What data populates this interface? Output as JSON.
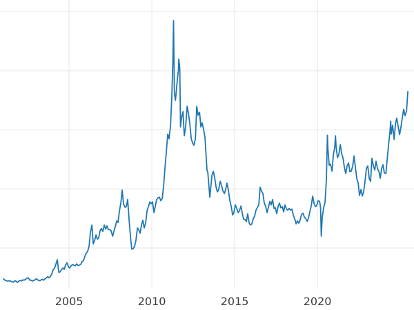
{
  "chart_data": {
    "type": "line",
    "title": "",
    "xlabel": "",
    "ylabel": "",
    "grid": true,
    "legend": "none",
    "xlim": [
      2000.83,
      2025.83
    ],
    "ylim": [
      3,
      52
    ],
    "xticks": [
      {
        "value": 2005,
        "label": "2005"
      },
      {
        "value": 2010,
        "label": "2010"
      },
      {
        "value": 2015,
        "label": "2015"
      },
      {
        "value": 2020,
        "label": "2020"
      }
    ],
    "yticks": [
      10,
      20,
      30,
      40,
      50
    ],
    "colors": {
      "line": "#1f77b4",
      "grid": "#e5e5e5",
      "tick_label": "#3b3b3b",
      "background": "#ffffff"
    },
    "points": [
      [
        2001.04,
        4.75
      ],
      [
        2001.13,
        4.55
      ],
      [
        2001.21,
        4.45
      ],
      [
        2001.29,
        4.4
      ],
      [
        2001.38,
        4.45
      ],
      [
        2001.46,
        4.4
      ],
      [
        2001.54,
        4.3
      ],
      [
        2001.63,
        4.2
      ],
      [
        2001.71,
        4.45
      ],
      [
        2001.79,
        4.4
      ],
      [
        2001.88,
        4.15
      ],
      [
        2001.96,
        4.35
      ],
      [
        2002.04,
        4.5
      ],
      [
        2002.13,
        4.45
      ],
      [
        2002.21,
        4.6
      ],
      [
        2002.29,
        4.55
      ],
      [
        2002.38,
        4.7
      ],
      [
        2002.46,
        4.9
      ],
      [
        2002.54,
        4.95
      ],
      [
        2002.63,
        4.55
      ],
      [
        2002.71,
        4.55
      ],
      [
        2002.79,
        4.4
      ],
      [
        2002.88,
        4.5
      ],
      [
        2002.96,
        4.65
      ],
      [
        2003.04,
        4.8
      ],
      [
        2003.13,
        4.55
      ],
      [
        2003.21,
        4.45
      ],
      [
        2003.29,
        4.55
      ],
      [
        2003.38,
        4.7
      ],
      [
        2003.46,
        4.55
      ],
      [
        2003.54,
        4.75
      ],
      [
        2003.63,
        4.95
      ],
      [
        2003.71,
        5.15
      ],
      [
        2003.79,
        4.95
      ],
      [
        2003.88,
        5.2
      ],
      [
        2003.96,
        5.6
      ],
      [
        2004.04,
        6.3
      ],
      [
        2004.13,
        6.6
      ],
      [
        2004.21,
        7.3
      ],
      [
        2004.29,
        8.0
      ],
      [
        2004.38,
        5.9
      ],
      [
        2004.46,
        5.95
      ],
      [
        2004.54,
        6.3
      ],
      [
        2004.63,
        6.6
      ],
      [
        2004.71,
        6.4
      ],
      [
        2004.79,
        7.1
      ],
      [
        2004.88,
        7.5
      ],
      [
        2004.96,
        6.8
      ],
      [
        2005.04,
        6.6
      ],
      [
        2005.13,
        7.0
      ],
      [
        2005.21,
        7.2
      ],
      [
        2005.29,
        7.1
      ],
      [
        2005.38,
        7.0
      ],
      [
        2005.46,
        7.3
      ],
      [
        2005.54,
        7.05
      ],
      [
        2005.63,
        7.1
      ],
      [
        2005.71,
        7.25
      ],
      [
        2005.79,
        7.7
      ],
      [
        2005.88,
        7.9
      ],
      [
        2005.96,
        8.65
      ],
      [
        2006.04,
        9.1
      ],
      [
        2006.13,
        9.5
      ],
      [
        2006.21,
        10.3
      ],
      [
        2006.29,
        12.6
      ],
      [
        2006.38,
        13.9
      ],
      [
        2006.46,
        10.7
      ],
      [
        2006.54,
        11.2
      ],
      [
        2006.63,
        12.2
      ],
      [
        2006.71,
        11.5
      ],
      [
        2006.79,
        11.7
      ],
      [
        2006.88,
        13.0
      ],
      [
        2006.96,
        13.3
      ],
      [
        2007.04,
        12.8
      ],
      [
        2007.13,
        13.9
      ],
      [
        2007.21,
        13.2
      ],
      [
        2007.29,
        13.75
      ],
      [
        2007.38,
        13.1
      ],
      [
        2007.46,
        13.1
      ],
      [
        2007.54,
        12.9
      ],
      [
        2007.63,
        12.0
      ],
      [
        2007.71,
        12.8
      ],
      [
        2007.79,
        13.6
      ],
      [
        2007.88,
        14.6
      ],
      [
        2007.96,
        14.3
      ],
      [
        2008.04,
        16.2
      ],
      [
        2008.13,
        17.7
      ],
      [
        2008.21,
        19.8
      ],
      [
        2008.29,
        17.5
      ],
      [
        2008.38,
        16.9
      ],
      [
        2008.46,
        17.0
      ],
      [
        2008.54,
        18.2
      ],
      [
        2008.63,
        14.6
      ],
      [
        2008.71,
        11.9
      ],
      [
        2008.79,
        9.8
      ],
      [
        2008.88,
        9.9
      ],
      [
        2008.96,
        10.3
      ],
      [
        2009.04,
        11.3
      ],
      [
        2009.13,
        13.4
      ],
      [
        2009.21,
        13.1
      ],
      [
        2009.29,
        12.5
      ],
      [
        2009.38,
        14.0
      ],
      [
        2009.46,
        14.7
      ],
      [
        2009.54,
        13.4
      ],
      [
        2009.63,
        14.3
      ],
      [
        2009.71,
        16.3
      ],
      [
        2009.79,
        17.0
      ],
      [
        2009.88,
        17.8
      ],
      [
        2009.96,
        17.5
      ],
      [
        2010.04,
        17.8
      ],
      [
        2010.13,
        16.0
      ],
      [
        2010.21,
        17.1
      ],
      [
        2010.29,
        18.2
      ],
      [
        2010.38,
        18.5
      ],
      [
        2010.46,
        18.6
      ],
      [
        2010.54,
        18.0
      ],
      [
        2010.63,
        18.4
      ],
      [
        2010.71,
        20.5
      ],
      [
        2010.79,
        23.4
      ],
      [
        2010.88,
        26.5
      ],
      [
        2010.96,
        29.3
      ],
      [
        2011.04,
        28.5
      ],
      [
        2011.13,
        30.8
      ],
      [
        2011.21,
        35.9
      ],
      [
        2011.27,
        42.0
      ],
      [
        2011.31,
        48.5
      ],
      [
        2011.36,
        36.5
      ],
      [
        2011.42,
        35.0
      ],
      [
        2011.46,
        36.0
      ],
      [
        2011.54,
        38.5
      ],
      [
        2011.6,
        40.0
      ],
      [
        2011.63,
        42.0
      ],
      [
        2011.69,
        40.3
      ],
      [
        2011.73,
        30.5
      ],
      [
        2011.79,
        32.0
      ],
      [
        2011.88,
        33.1
      ],
      [
        2011.96,
        29.0
      ],
      [
        2012.04,
        30.5
      ],
      [
        2012.13,
        34.0
      ],
      [
        2012.21,
        32.8
      ],
      [
        2012.29,
        31.2
      ],
      [
        2012.38,
        28.5
      ],
      [
        2012.46,
        27.8
      ],
      [
        2012.54,
        27.4
      ],
      [
        2012.63,
        28.5
      ],
      [
        2012.71,
        34.0
      ],
      [
        2012.79,
        32.5
      ],
      [
        2012.88,
        33.0
      ],
      [
        2012.96,
        30.5
      ],
      [
        2013.04,
        31.2
      ],
      [
        2013.13,
        30.0
      ],
      [
        2013.21,
        28.7
      ],
      [
        2013.29,
        25.0
      ],
      [
        2013.33,
        23.2
      ],
      [
        2013.38,
        22.8
      ],
      [
        2013.46,
        20.0
      ],
      [
        2013.5,
        18.6
      ],
      [
        2013.54,
        19.7
      ],
      [
        2013.63,
        22.3
      ],
      [
        2013.71,
        23.0
      ],
      [
        2013.79,
        22.0
      ],
      [
        2013.88,
        20.3
      ],
      [
        2013.96,
        19.5
      ],
      [
        2014.04,
        19.9
      ],
      [
        2014.13,
        21.3
      ],
      [
        2014.21,
        20.6
      ],
      [
        2014.29,
        19.7
      ],
      [
        2014.38,
        19.2
      ],
      [
        2014.46,
        19.9
      ],
      [
        2014.54,
        21.0
      ],
      [
        2014.63,
        19.6
      ],
      [
        2014.71,
        18.0
      ],
      [
        2014.79,
        17.1
      ],
      [
        2014.88,
        15.6
      ],
      [
        2014.96,
        16.0
      ],
      [
        2015.04,
        17.3
      ],
      [
        2015.13,
        16.7
      ],
      [
        2015.21,
        16.0
      ],
      [
        2015.29,
        16.3
      ],
      [
        2015.38,
        17.1
      ],
      [
        2015.46,
        15.9
      ],
      [
        2015.54,
        14.9
      ],
      [
        2015.63,
        14.8
      ],
      [
        2015.71,
        14.5
      ],
      [
        2015.79,
        15.8
      ],
      [
        2015.88,
        14.2
      ],
      [
        2015.96,
        13.9
      ],
      [
        2016.04,
        14.1
      ],
      [
        2016.13,
        15.0
      ],
      [
        2016.21,
        15.4
      ],
      [
        2016.29,
        16.4
      ],
      [
        2016.38,
        16.9
      ],
      [
        2016.46,
        17.3
      ],
      [
        2016.54,
        20.3
      ],
      [
        2016.63,
        19.6
      ],
      [
        2016.71,
        19.2
      ],
      [
        2016.79,
        17.6
      ],
      [
        2016.88,
        17.0
      ],
      [
        2016.96,
        16.0
      ],
      [
        2017.04,
        16.9
      ],
      [
        2017.13,
        17.9
      ],
      [
        2017.21,
        17.3
      ],
      [
        2017.29,
        18.2
      ],
      [
        2017.38,
        16.7
      ],
      [
        2017.46,
        16.8
      ],
      [
        2017.54,
        15.8
      ],
      [
        2017.63,
        17.1
      ],
      [
        2017.71,
        17.6
      ],
      [
        2017.79,
        16.8
      ],
      [
        2017.88,
        17.0
      ],
      [
        2017.96,
        16.1
      ],
      [
        2018.04,
        17.3
      ],
      [
        2018.13,
        16.6
      ],
      [
        2018.21,
        16.4
      ],
      [
        2018.29,
        16.7
      ],
      [
        2018.38,
        16.4
      ],
      [
        2018.46,
        16.6
      ],
      [
        2018.54,
        15.6
      ],
      [
        2018.63,
        14.9
      ],
      [
        2018.71,
        14.1
      ],
      [
        2018.79,
        14.6
      ],
      [
        2018.88,
        14.2
      ],
      [
        2018.96,
        14.8
      ],
      [
        2019.04,
        15.7
      ],
      [
        2019.13,
        15.9
      ],
      [
        2019.21,
        15.2
      ],
      [
        2019.29,
        15.0
      ],
      [
        2019.38,
        14.5
      ],
      [
        2019.46,
        15.1
      ],
      [
        2019.54,
        16.1
      ],
      [
        2019.63,
        17.2
      ],
      [
        2019.71,
        18.8
      ],
      [
        2019.79,
        17.6
      ],
      [
        2019.88,
        17.0
      ],
      [
        2019.96,
        17.2
      ],
      [
        2020.04,
        18.0
      ],
      [
        2020.13,
        17.9
      ],
      [
        2020.19,
        16.8
      ],
      [
        2020.23,
        12.0
      ],
      [
        2020.29,
        15.2
      ],
      [
        2020.38,
        16.9
      ],
      [
        2020.46,
        17.8
      ],
      [
        2020.54,
        21.5
      ],
      [
        2020.6,
        29.1
      ],
      [
        2020.63,
        26.9
      ],
      [
        2020.71,
        24.0
      ],
      [
        2020.79,
        24.2
      ],
      [
        2020.88,
        23.0
      ],
      [
        2020.96,
        25.8
      ],
      [
        2021.04,
        26.9
      ],
      [
        2021.09,
        29.0
      ],
      [
        2021.13,
        27.0
      ],
      [
        2021.21,
        25.3
      ],
      [
        2021.29,
        25.8
      ],
      [
        2021.38,
        27.5
      ],
      [
        2021.46,
        26.0
      ],
      [
        2021.54,
        25.3
      ],
      [
        2021.63,
        23.6
      ],
      [
        2021.71,
        22.6
      ],
      [
        2021.79,
        23.9
      ],
      [
        2021.88,
        24.4
      ],
      [
        2021.96,
        22.9
      ],
      [
        2022.04,
        23.0
      ],
      [
        2022.13,
        23.9
      ],
      [
        2022.21,
        25.6
      ],
      [
        2022.29,
        23.7
      ],
      [
        2022.38,
        21.7
      ],
      [
        2022.46,
        21.0
      ],
      [
        2022.54,
        18.9
      ],
      [
        2022.63,
        19.9
      ],
      [
        2022.71,
        18.8
      ],
      [
        2022.79,
        19.5
      ],
      [
        2022.88,
        21.5
      ],
      [
        2022.96,
        23.5
      ],
      [
        2023.04,
        23.9
      ],
      [
        2023.13,
        21.7
      ],
      [
        2023.21,
        21.3
      ],
      [
        2023.29,
        25.2
      ],
      [
        2023.38,
        23.9
      ],
      [
        2023.46,
        23.2
      ],
      [
        2023.54,
        24.7
      ],
      [
        2023.63,
        23.4
      ],
      [
        2023.71,
        23.0
      ],
      [
        2023.79,
        21.8
      ],
      [
        2023.88,
        23.5
      ],
      [
        2023.96,
        24.1
      ],
      [
        2024.04,
        22.7
      ],
      [
        2024.13,
        22.6
      ],
      [
        2024.21,
        24.9
      ],
      [
        2024.29,
        27.3
      ],
      [
        2024.38,
        29.7
      ],
      [
        2024.42,
        31.5
      ],
      [
        2024.46,
        29.3
      ],
      [
        2024.54,
        30.8
      ],
      [
        2024.63,
        28.4
      ],
      [
        2024.71,
        31.0
      ],
      [
        2024.79,
        32.0
      ],
      [
        2024.88,
        30.5
      ],
      [
        2024.96,
        29.2
      ],
      [
        2025.04,
        30.4
      ],
      [
        2025.13,
        32.2
      ],
      [
        2025.21,
        33.5
      ],
      [
        2025.29,
        32.4
      ],
      [
        2025.38,
        33.2
      ],
      [
        2025.46,
        36.5
      ]
    ]
  }
}
